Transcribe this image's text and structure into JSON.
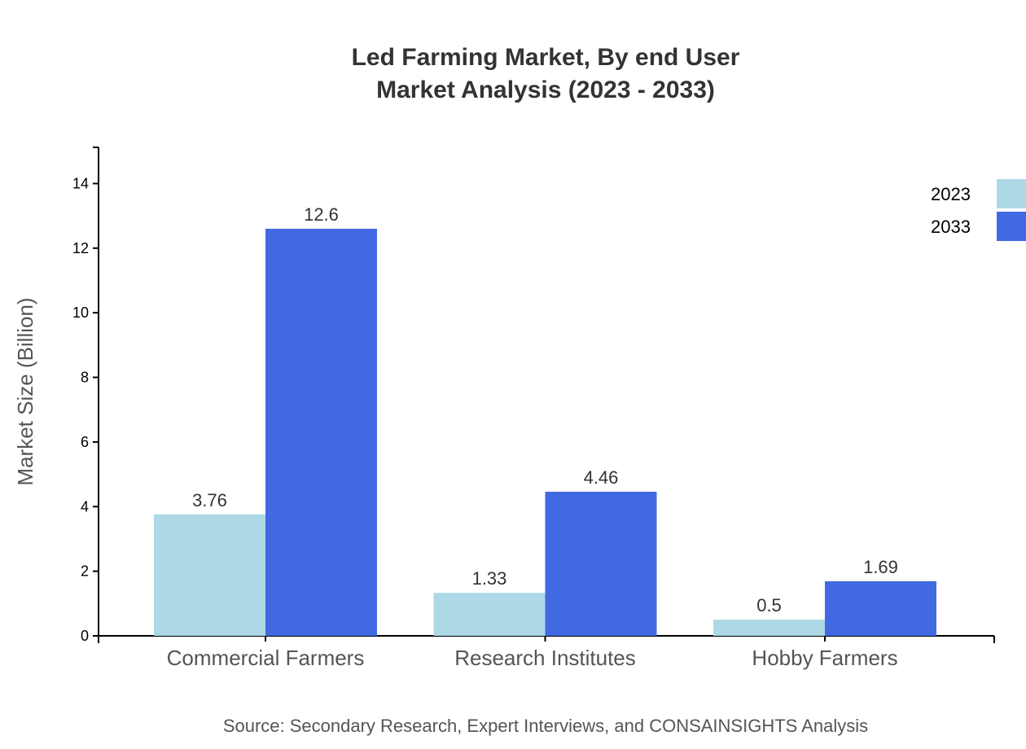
{
  "chart_data": {
    "type": "bar",
    "title": "Led Farming Market, By end User",
    "subtitle": "Market Analysis (2023 - 2033)",
    "xlabel": "",
    "ylabel": "Market Size (Billion)",
    "categories": [
      "Commercial Farmers",
      "Research Institutes",
      "Hobby Farmers"
    ],
    "series": [
      {
        "name": "2023",
        "values": [
          3.76,
          1.33,
          0.5
        ],
        "color": "#add8e6"
      },
      {
        "name": "2033",
        "values": [
          12.6,
          4.46,
          1.69
        ],
        "color": "#4169e1"
      }
    ],
    "ylim": [
      0,
      15.12
    ],
    "yticks": [
      0,
      2,
      4,
      6,
      8,
      10,
      12,
      14
    ],
    "grid": false,
    "legend_position": "top-right",
    "source": "Source: Secondary Research, Expert Interviews, and CONSAINSIGHTS Analysis"
  }
}
